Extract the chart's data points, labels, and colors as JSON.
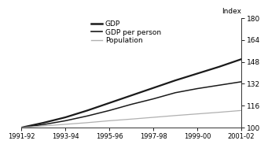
{
  "x_labels": [
    "1991-92",
    "1993-94",
    "1995-96",
    "1997-98",
    "1999-00",
    "2001-02"
  ],
  "x_tick_positions": [
    0,
    2,
    4,
    6,
    8,
    10
  ],
  "gdp": [
    100,
    103.5,
    107.5,
    112.5,
    118.0,
    123.5,
    129.0,
    134.5,
    139.5,
    144.5,
    150.0
  ],
  "gdp_per_person": [
    100,
    102.2,
    105.0,
    108.5,
    112.5,
    117.0,
    121.0,
    125.5,
    128.5,
    131.0,
    133.5
  ],
  "population": [
    100,
    101.2,
    102.4,
    103.6,
    105.0,
    106.2,
    107.5,
    108.8,
    110.0,
    111.2,
    112.5
  ],
  "gdp_color": "#1a1a1a",
  "gdp_per_person_color": "#1a1a1a",
  "population_color": "#b0b0b0",
  "ylim": [
    100,
    180
  ],
  "yticks": [
    100,
    116,
    132,
    148,
    164,
    180
  ],
  "ylabel": "Index",
  "legend_labels": [
    "GDP",
    "GDP per person",
    "Population"
  ],
  "gdp_linewidth": 1.6,
  "gdp_per_person_linewidth": 1.1,
  "population_linewidth": 0.9
}
